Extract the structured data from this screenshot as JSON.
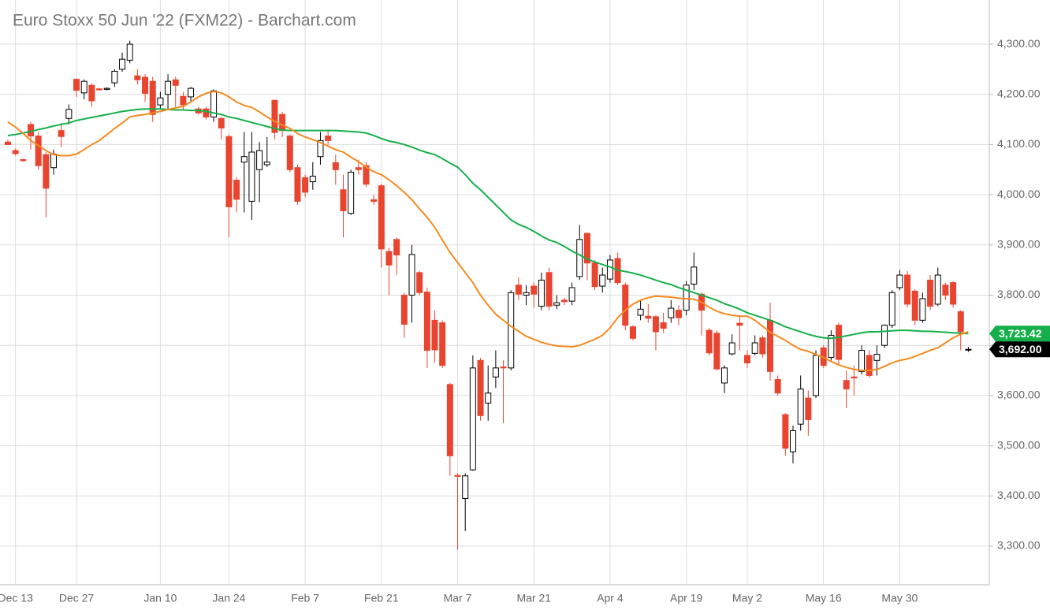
{
  "chart_data": {
    "type": "candlestick",
    "title": "Euro Stoxx 50 Jun '22 (FXM22) - Barchart.com",
    "categories": [
      null,
      "Dec 13",
      null,
      null,
      null,
      null,
      null,
      null,
      null,
      "Dec 27",
      null,
      null,
      null,
      null,
      null,
      null,
      null,
      null,
      null,
      null,
      "Jan 10",
      null,
      null,
      null,
      null,
      null,
      null,
      null,
      null,
      "Jan 24",
      null,
      null,
      null,
      null,
      null,
      null,
      null,
      null,
      null,
      "Feb 7",
      null,
      null,
      null,
      null,
      null,
      null,
      null,
      null,
      null,
      "Feb 21",
      null,
      null,
      null,
      null,
      null,
      null,
      null,
      null,
      null,
      "Mar 7",
      null,
      null,
      null,
      null,
      null,
      null,
      null,
      null,
      null,
      "Mar 21",
      null,
      null,
      null,
      null,
      null,
      null,
      null,
      null,
      null,
      "Apr 4",
      null,
      null,
      null,
      null,
      null,
      null,
      null,
      null,
      null,
      "Apr 19",
      null,
      null,
      null,
      null,
      null,
      null,
      null,
      "May 2",
      null,
      null,
      null,
      null,
      null,
      null,
      null,
      null,
      null,
      "May 16",
      null,
      null,
      null,
      null,
      null,
      null,
      null,
      null,
      null,
      "May 30",
      null,
      null,
      null,
      null,
      null,
      null,
      null,
      null,
      null
    ],
    "open": [
      4105,
      4088,
      4070,
      4140,
      4117,
      4080,
      4054,
      4128,
      4152,
      4230,
      4203,
      4218,
      4211,
      4210,
      4223,
      4250,
      4268,
      4237,
      4234,
      4226,
      4179,
      4200,
      4229,
      4196,
      4195,
      4171,
      4171,
      4155,
      4152,
      4116,
      4029,
      4065,
      3987,
      4050,
      4060,
      4188,
      4160,
      4117,
      4054,
      4034,
      4026,
      4076,
      4117,
      4064,
      4010,
      3963,
      4054,
      4058,
      3990,
      4018,
      3887,
      3911,
      3800,
      3800,
      3845,
      3806,
      3750,
      3745,
      3622,
      3441,
      3395,
      3452,
      3670,
      3585,
      3637,
      3657,
      3655,
      3820,
      3800,
      3818,
      3778,
      3845,
      3780,
      3790,
      3788,
      3837,
      3923,
      3864,
      3818,
      3832,
      3873,
      3820,
      3737,
      3760,
      3758,
      3757,
      3745,
      3755,
      3770,
      3770,
      3822,
      3802,
      3730,
      3724,
      3625,
      3683,
      3744,
      3680,
      3684,
      3715,
      3750,
      3632,
      3562,
      3488,
      3543,
      3595,
      3600,
      3695,
      3676,
      3740,
      3630,
      3637,
      3648,
      3680,
      3670,
      3700,
      3740,
      3815,
      3840,
      3808,
      3750,
      3830,
      3782,
      3820,
      3825,
      3767,
      3692
    ],
    "high": [
      4110,
      4092,
      4072,
      4145,
      4125,
      4085,
      4090,
      4143,
      4180,
      4232,
      4230,
      4222,
      4213,
      4214,
      4250,
      4283,
      4307,
      4250,
      4240,
      4235,
      4205,
      4240,
      4235,
      4205,
      4215,
      4175,
      4175,
      4210,
      4155,
      4120,
      4035,
      4125,
      4125,
      4105,
      4115,
      4190,
      4165,
      4120,
      4060,
      4040,
      4065,
      4125,
      4130,
      4080,
      4040,
      4050,
      4070,
      4065,
      4000,
      4022,
      3895,
      3915,
      3805,
      3900,
      3848,
      3815,
      3770,
      3750,
      3625,
      3445,
      3445,
      3680,
      3675,
      3660,
      3690,
      3670,
      3810,
      3835,
      3820,
      3825,
      3845,
      3855,
      3800,
      3795,
      3825,
      3940,
      3925,
      3870,
      3855,
      3880,
      3885,
      3825,
      3740,
      3790,
      3782,
      3760,
      3765,
      3790,
      3780,
      3828,
      3885,
      3805,
      3735,
      3730,
      3660,
      3722,
      3760,
      3690,
      3720,
      3720,
      3785,
      3640,
      3565,
      3540,
      3640,
      3610,
      3690,
      3700,
      3730,
      3745,
      3650,
      3660,
      3700,
      3690,
      3700,
      3742,
      3810,
      3850,
      3848,
      3812,
      3805,
      3840,
      3855,
      3825,
      3828,
      3770,
      3697
    ],
    "low": [
      4100,
      4078,
      4066,
      4090,
      4050,
      3955,
      4040,
      4095,
      4140,
      4195,
      4190,
      4175,
      4208,
      4208,
      4215,
      4245,
      4262,
      4220,
      4185,
      4145,
      4170,
      4170,
      4175,
      4170,
      4185,
      4160,
      4150,
      4145,
      4110,
      3915,
      3965,
      3965,
      3950,
      3985,
      4055,
      4110,
      4115,
      4045,
      3980,
      3995,
      4010,
      4060,
      4100,
      4020,
      3915,
      3960,
      4040,
      4015,
      3980,
      3855,
      3800,
      3840,
      3715,
      3745,
      3800,
      3655,
      3665,
      3655,
      3440,
      3293,
      3330,
      3450,
      3550,
      3550,
      3615,
      3545,
      3650,
      3790,
      3780,
      3775,
      3770,
      3770,
      3772,
      3780,
      3780,
      3830,
      3830,
      3810,
      3805,
      3825,
      3820,
      3730,
      3710,
      3750,
      3745,
      3690,
      3725,
      3745,
      3740,
      3760,
      3810,
      3720,
      3680,
      3650,
      3605,
      3680,
      3690,
      3655,
      3680,
      3675,
      3630,
      3600,
      3480,
      3465,
      3530,
      3520,
      3595,
      3655,
      3670,
      3660,
      3575,
      3600,
      3642,
      3635,
      3640,
      3695,
      3735,
      3810,
      3775,
      3740,
      3745,
      3770,
      3778,
      3790,
      3775,
      3690,
      3687
    ],
    "close": [
      4100,
      4082,
      4068,
      4117,
      4058,
      4013,
      4081,
      4116,
      4170,
      4208,
      4226,
      4187,
      4209,
      4212,
      4246,
      4270,
      4300,
      4229,
      4202,
      4160,
      4193,
      4226,
      4218,
      4179,
      4212,
      4163,
      4155,
      4207,
      4133,
      3976,
      3991,
      4076,
      4085,
      4088,
      4065,
      4124,
      4128,
      4050,
      3987,
      4005,
      4037,
      4108,
      4108,
      4050,
      3968,
      4045,
      4050,
      4021,
      3987,
      3892,
      3860,
      3880,
      3742,
      3881,
      3805,
      3690,
      3691,
      3660,
      3480,
      3439,
      3440,
      3655,
      3560,
      3605,
      3655,
      3655,
      3805,
      3802,
      3805,
      3802,
      3830,
      3778,
      3785,
      3787,
      3815,
      3911,
      3864,
      3817,
      3840,
      3870,
      3825,
      3740,
      3714,
      3772,
      3754,
      3727,
      3734,
      3774,
      3755,
      3820,
      3856,
      3770,
      3685,
      3653,
      3655,
      3705,
      3740,
      3665,
      3705,
      3683,
      3648,
      3605,
      3495,
      3530,
      3613,
      3552,
      3680,
      3660,
      3720,
      3672,
      3613,
      3635,
      3690,
      3640,
      3682,
      3740,
      3805,
      3840,
      3782,
      3750,
      3793,
      3778,
      3840,
      3800,
      3782,
      3727,
      3692
    ],
    "up_color": "#000000",
    "down_color": "#e8442f",
    "lines": [
      {
        "color": "#16b04a",
        "values": [
          4118,
          4120,
          4123,
          4126,
          4130,
          4133,
          4137,
          4140,
          4143,
          4148,
          4151,
          4154,
          4157,
          4160,
          4163,
          4166,
          4168,
          4170,
          4171,
          4171,
          4171,
          4170,
          4169,
          4169,
          4168,
          4168,
          4166,
          4163,
          4160,
          4155,
          4152,
          4148,
          4144,
          4140,
          4136,
          4132,
          4129,
          4128,
          4128,
          4128,
          4128,
          4128,
          4128,
          4128,
          4127,
          4126,
          4125,
          4123,
          4118,
          4112,
          4107,
          4104,
          4100,
          4095,
          4089,
          4084,
          4080,
          4072,
          4063,
          4055,
          4040,
          4023,
          4010,
          3995,
          3980,
          3965,
          3950,
          3941,
          3935,
          3927,
          3918,
          3910,
          3905,
          3897,
          3888,
          3880,
          3872,
          3866,
          3861,
          3856,
          3850,
          3847,
          3844,
          3840,
          3835,
          3830,
          3825,
          3821,
          3815,
          3810,
          3805,
          3800,
          3795,
          3790,
          3783,
          3778,
          3772,
          3765,
          3760,
          3755,
          3750,
          3744,
          3737,
          3732,
          3727,
          3722,
          3718,
          3715,
          3714,
          3716,
          3719,
          3722,
          3725,
          3727,
          3727,
          3728,
          3729,
          3730,
          3730,
          3729,
          3728,
          3728,
          3727,
          3726,
          3725,
          3724,
          3723.42
        ]
      },
      {
        "color": "#f58a1f",
        "values": [
          4145,
          4135,
          4122,
          4108,
          4098,
          4088,
          4080,
          4078,
          4078,
          4081,
          4090,
          4100,
          4108,
          4120,
          4132,
          4143,
          4155,
          4158,
          4160,
          4163,
          4166,
          4170,
          4173,
          4176,
          4185,
          4195,
          4202,
          4206,
          4203,
          4195,
          4185,
          4178,
          4174,
          4165,
          4155,
          4146,
          4139,
          4132,
          4122,
          4115,
          4110,
          4104,
          4097,
          4090,
          4085,
          4075,
          4066,
          4055,
          4046,
          4040,
          4030,
          4018,
          4005,
          3990,
          3972,
          3955,
          3935,
          3910,
          3885,
          3865,
          3845,
          3825,
          3800,
          3780,
          3762,
          3750,
          3738,
          3728,
          3718,
          3712,
          3706,
          3702,
          3699,
          3698,
          3697,
          3700,
          3706,
          3712,
          3720,
          3735,
          3755,
          3770,
          3782,
          3790,
          3795,
          3798,
          3797,
          3796,
          3794,
          3793,
          3792,
          3786,
          3776,
          3768,
          3763,
          3760,
          3758,
          3758,
          3750,
          3738,
          3726,
          3718,
          3710,
          3700,
          3692,
          3688,
          3682,
          3676,
          3668,
          3661,
          3656,
          3652,
          3650,
          3650,
          3652,
          3658,
          3665,
          3670,
          3673,
          3678,
          3684,
          3690,
          3695,
          3705,
          3715,
          3722,
          3727
        ]
      }
    ],
    "price_tags": [
      {
        "value": 3723.42,
        "label": "3,723.42",
        "color": "#16b04a"
      },
      {
        "value": 3692,
        "label": "3,692.00",
        "color": "#000000"
      }
    ],
    "ylim": [
      3223,
      4388
    ],
    "yticks": [
      {
        "value": 3300,
        "label": "3,300.00"
      },
      {
        "value": 3400,
        "label": "3,400.00"
      },
      {
        "value": 3500,
        "label": "3,500.00"
      },
      {
        "value": 3600,
        "label": "3,600.00"
      },
      {
        "value": 3700,
        "label": "3,700.00"
      },
      {
        "value": 3800,
        "label": "3,800.00"
      },
      {
        "value": 3900,
        "label": "3,900.00"
      },
      {
        "value": 4000,
        "label": "4,000.00"
      },
      {
        "value": 4100,
        "label": "4,100.00"
      },
      {
        "value": 4200,
        "label": "4,200.00"
      },
      {
        "value": 4300,
        "label": "4,300.00"
      }
    ],
    "grid": true
  }
}
